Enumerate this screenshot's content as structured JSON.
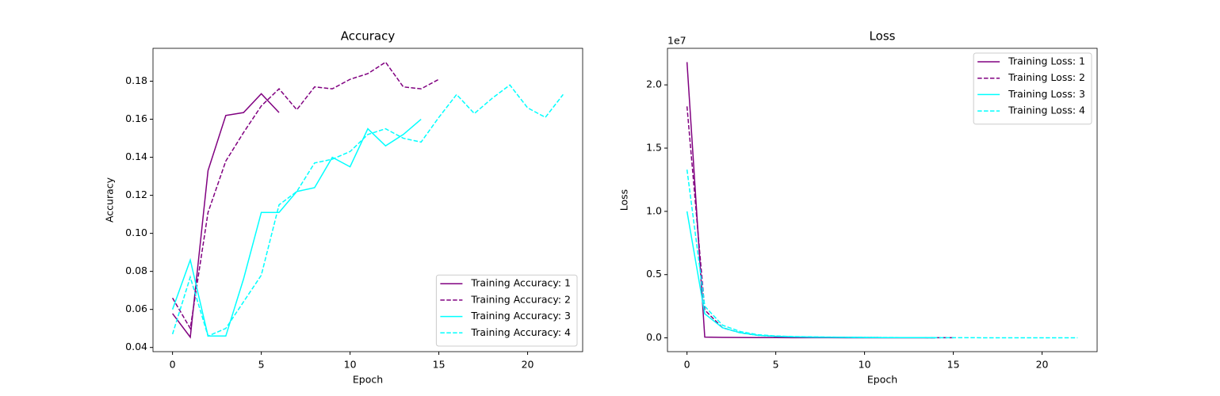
{
  "chart_data": [
    {
      "type": "line",
      "title": "Accuracy",
      "x_label": "Epoch",
      "y_label": "Accuracy",
      "xlim": [
        -1.1,
        23.1
      ],
      "xticks": [
        0,
        5,
        10,
        15,
        20
      ],
      "ylim": [
        0.0378,
        0.1973
      ],
      "yticks": [
        {
          "value": 0.04,
          "label": "0.04"
        },
        {
          "value": 0.06,
          "label": "0.06"
        },
        {
          "value": 0.08,
          "label": "0.08"
        },
        {
          "value": 0.1,
          "label": "0.10"
        },
        {
          "value": 0.12,
          "label": "0.12"
        },
        {
          "value": 0.14,
          "label": "0.14"
        },
        {
          "value": 0.16,
          "label": "0.16"
        },
        {
          "value": 0.18,
          "label": "0.18"
        }
      ],
      "legend": "lower right",
      "series": [
        {
          "name": "Training Accuracy: 1",
          "color": "#800080",
          "dashed": false,
          "x": [
            0,
            1,
            2,
            3,
            4,
            5,
            6
          ],
          "values": [
            0.0578,
            0.0454,
            0.133,
            0.162,
            0.1635,
            0.1734,
            0.1635
          ]
        },
        {
          "name": "Training Accuracy: 2",
          "color": "#800080",
          "dashed": true,
          "x": [
            0,
            1,
            2,
            3,
            4,
            5,
            6,
            7,
            8,
            9,
            10,
            11,
            12,
            13,
            14,
            15
          ],
          "values": [
            0.066,
            0.05,
            0.111,
            0.138,
            0.153,
            0.167,
            0.176,
            0.165,
            0.177,
            0.176,
            0.181,
            0.184,
            0.19,
            0.177,
            0.176,
            0.181
          ]
        },
        {
          "name": "Training Accuracy: 3",
          "color": "#00ffff",
          "dashed": false,
          "x": [
            0,
            1,
            2,
            3,
            4,
            5,
            6,
            7,
            8,
            9,
            10,
            11,
            12,
            13,
            14
          ],
          "values": [
            0.06,
            0.086,
            0.046,
            0.046,
            0.076,
            0.111,
            0.111,
            0.122,
            0.124,
            0.14,
            0.135,
            0.155,
            0.146,
            0.152,
            0.16
          ]
        },
        {
          "name": "Training Accuracy: 4",
          "color": "#00ffff",
          "dashed": true,
          "x": [
            0,
            1,
            2,
            3,
            4,
            5,
            6,
            7,
            8,
            9,
            10,
            11,
            12,
            13,
            14,
            15,
            16,
            17,
            18,
            19,
            20,
            21,
            22
          ],
          "values": [
            0.047,
            0.077,
            0.046,
            0.05,
            0.064,
            0.078,
            0.115,
            0.122,
            0.137,
            0.139,
            0.143,
            0.152,
            0.155,
            0.15,
            0.148,
            0.161,
            0.173,
            0.163,
            0.171,
            0.178,
            0.166,
            0.161,
            0.173
          ]
        }
      ]
    },
    {
      "type": "line",
      "title": "Loss",
      "x_label": "Epoch",
      "y_label": "Loss",
      "y_offset_label": "1e7",
      "xlim": [
        -1.1,
        23.1
      ],
      "xticks": [
        0,
        5,
        10,
        15,
        20
      ],
      "ylim": [
        -1090000,
        22890000
      ],
      "yticks": [
        {
          "value": 0,
          "label": "0.0"
        },
        {
          "value": 5000000,
          "label": "0.5"
        },
        {
          "value": 10000000,
          "label": "1.0"
        },
        {
          "value": 15000000,
          "label": "1.5"
        },
        {
          "value": 20000000,
          "label": "2.0"
        }
      ],
      "legend": "upper right",
      "series": [
        {
          "name": "Training Loss: 1",
          "color": "#800080",
          "dashed": false,
          "x": [
            0,
            1,
            2,
            3,
            4,
            5,
            6,
            7,
            8,
            9,
            10,
            11,
            12,
            13,
            14
          ],
          "values": [
            21800000,
            60000,
            40000,
            30000,
            25000,
            20000,
            15000,
            12000,
            10000,
            9000,
            8000,
            7000,
            6000,
            5000,
            5000
          ]
        },
        {
          "name": "Training Loss: 2",
          "color": "#800080",
          "dashed": true,
          "x": [
            0,
            1,
            2,
            3,
            4,
            5,
            6,
            7,
            8,
            9,
            10,
            11,
            12,
            13,
            14,
            15
          ],
          "values": [
            18300000,
            2200000,
            800000,
            400000,
            200000,
            120000,
            80000,
            60000,
            50000,
            40000,
            30000,
            25000,
            20000,
            20000,
            15000,
            15000
          ]
        },
        {
          "name": "Training Loss: 3",
          "color": "#00ffff",
          "dashed": false,
          "x": [
            0,
            1,
            2,
            3,
            4,
            5,
            6,
            7,
            8,
            9,
            10,
            11,
            12,
            13,
            14
          ],
          "values": [
            10000000,
            1900000,
            800000,
            400000,
            200000,
            120000,
            80000,
            60000,
            50000,
            40000,
            30000,
            25000,
            20000,
            20000,
            15000
          ]
        },
        {
          "name": "Training Loss: 4",
          "color": "#00ffff",
          "dashed": true,
          "x": [
            0,
            1,
            2,
            3,
            4,
            5,
            6,
            7,
            8,
            9,
            10,
            11,
            12,
            13,
            14,
            15,
            16,
            17,
            18,
            19,
            20,
            21,
            22
          ],
          "values": [
            13300000,
            2500000,
            1000000,
            500000,
            250000,
            150000,
            100000,
            80000,
            60000,
            50000,
            40000,
            30000,
            25000,
            20000,
            15000,
            12000,
            10000,
            9000,
            8000,
            7000,
            6000,
            5000,
            5000
          ]
        }
      ]
    }
  ]
}
